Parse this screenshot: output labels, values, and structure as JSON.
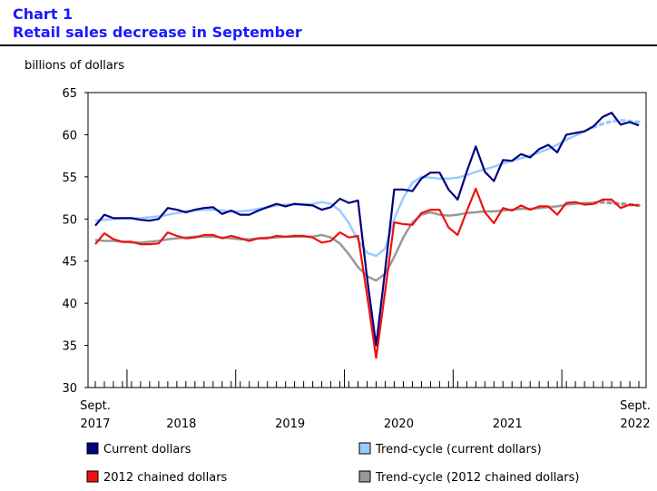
{
  "chart_data": {
    "type": "line",
    "chart_label": "Chart 1",
    "title": "Retail sales decrease in September",
    "ylabel": "billions of dollars",
    "xlabel": "",
    "ylim": [
      30,
      65
    ],
    "yticks": [
      30,
      35,
      40,
      45,
      50,
      55,
      60,
      65
    ],
    "xaxis": {
      "start": "Sept. 2017",
      "end": "Sept. 2022",
      "points": 61,
      "edge_labels": [
        {
          "line1": "Sept.",
          "line2": "2017",
          "index": 0
        },
        {
          "line1": "Sept.",
          "line2": "2022",
          "index": 60
        }
      ],
      "year_labels": [
        {
          "label": "2018",
          "index": 9.5
        },
        {
          "label": "2019",
          "index": 21.5
        },
        {
          "label": "2020",
          "index": 33.5
        },
        {
          "label": "2021",
          "index": 45.5
        }
      ],
      "year_boundaries": [
        3.5,
        15.5,
        27.5,
        39.5,
        51.5
      ]
    },
    "series": [
      {
        "name": "Current dollars",
        "color": "#000080",
        "style": "solid",
        "values": [
          49.2,
          50.5,
          50.1,
          50.1,
          50.1,
          49.9,
          49.8,
          50.0,
          51.3,
          51.1,
          50.8,
          51.1,
          51.3,
          51.4,
          50.6,
          51.0,
          50.5,
          50.5,
          51.0,
          51.4,
          51.8,
          51.5,
          51.8,
          51.7,
          51.6,
          51.1,
          51.4,
          52.4,
          51.9,
          52.2,
          43.0,
          35.0,
          44.0,
          53.5,
          53.5,
          53.3,
          54.8,
          55.5,
          55.5,
          53.5,
          52.3,
          55.6,
          58.6,
          55.6,
          54.5,
          57.0,
          56.9,
          57.7,
          57.3,
          58.3,
          58.8,
          57.9,
          60.0,
          60.2,
          60.4,
          61.0,
          62.1,
          62.6,
          61.2,
          61.5,
          61.1
        ]
      },
      {
        "name": "Trend-cycle (current dollars)",
        "color": "#99ccff",
        "style": "solid-dotted-end",
        "values": [
          49.8,
          49.9,
          50.0,
          50.1,
          50.1,
          50.1,
          50.2,
          50.3,
          50.5,
          50.7,
          50.9,
          51.0,
          51.1,
          51.1,
          51.0,
          50.9,
          50.9,
          51.0,
          51.2,
          51.4,
          51.6,
          51.7,
          51.7,
          51.7,
          51.8,
          52.0,
          51.8,
          51.0,
          49.5,
          47.5,
          46.0,
          45.6,
          46.5,
          50.0,
          52.5,
          54.3,
          55.0,
          54.9,
          54.8,
          54.8,
          54.9,
          55.2,
          55.6,
          55.9,
          56.2,
          56.6,
          56.9,
          57.2,
          57.5,
          57.9,
          58.3,
          58.8,
          59.4,
          59.9,
          60.4,
          60.9,
          61.3,
          61.6,
          61.7,
          61.6,
          61.5
        ]
      },
      {
        "name": "2012 chained dollars",
        "color": "#ee1111",
        "style": "solid",
        "values": [
          47.0,
          48.3,
          47.6,
          47.3,
          47.3,
          47.0,
          47.0,
          47.1,
          48.4,
          48.0,
          47.7,
          47.8,
          48.1,
          48.1,
          47.7,
          48.0,
          47.7,
          47.4,
          47.7,
          47.7,
          48.0,
          47.9,
          48.0,
          48.0,
          47.8,
          47.2,
          47.4,
          48.4,
          47.8,
          48.0,
          41.0,
          33.5,
          41.5,
          49.6,
          49.4,
          49.3,
          50.7,
          51.1,
          51.1,
          49.0,
          48.1,
          50.9,
          53.6,
          50.8,
          49.5,
          51.3,
          51.0,
          51.6,
          51.1,
          51.5,
          51.5,
          50.5,
          51.9,
          52.0,
          51.7,
          51.8,
          52.3,
          52.3,
          51.3,
          51.7,
          51.6
        ]
      },
      {
        "name": "Trend-cycle (2012 chained dollars)",
        "color": "#999999",
        "style": "solid-dotted-end",
        "values": [
          47.5,
          47.4,
          47.4,
          47.3,
          47.2,
          47.2,
          47.3,
          47.4,
          47.6,
          47.7,
          47.8,
          47.9,
          47.9,
          47.9,
          47.8,
          47.7,
          47.6,
          47.6,
          47.7,
          47.8,
          47.8,
          47.9,
          47.9,
          47.9,
          47.9,
          48.1,
          47.8,
          47.1,
          45.8,
          44.3,
          43.2,
          42.7,
          43.5,
          45.5,
          47.8,
          49.6,
          50.5,
          50.8,
          50.5,
          50.4,
          50.5,
          50.7,
          50.8,
          50.9,
          50.9,
          51.0,
          51.1,
          51.2,
          51.2,
          51.3,
          51.4,
          51.5,
          51.7,
          51.8,
          51.9,
          51.9,
          52.0,
          51.9,
          51.8,
          51.7,
          51.6
        ]
      }
    ],
    "legend": [
      {
        "label": "Current dollars",
        "color": "#000080"
      },
      {
        "label": "Trend-cycle (current dollars)",
        "color": "#99ccff"
      },
      {
        "label": "2012 chained dollars",
        "color": "#ee1111"
      },
      {
        "label": "Trend-cycle (2012 chained dollars)",
        "color": "#999999"
      }
    ]
  }
}
